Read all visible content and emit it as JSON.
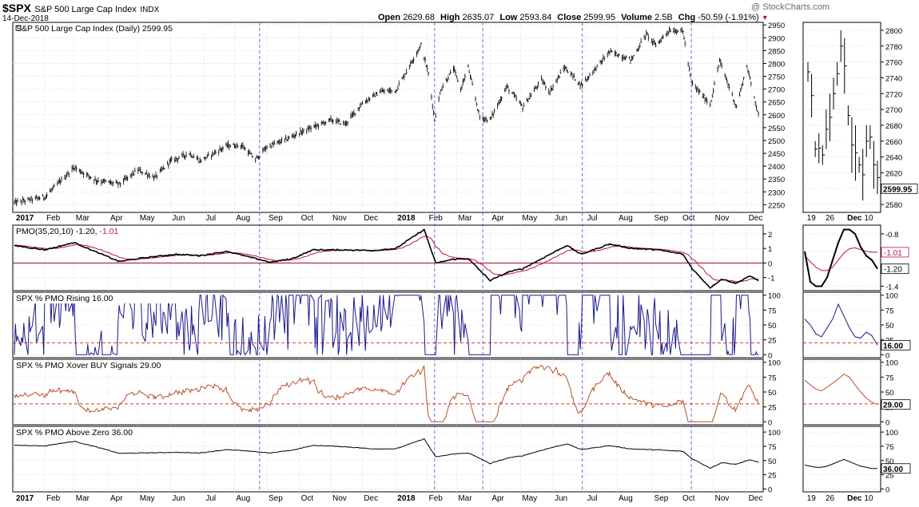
{
  "header": {
    "symbol": "$SPX",
    "name": "S&P 500 Large Cap Index",
    "exchange": "INDX",
    "date": "14-Dec-2018",
    "watermark": "@ StockCharts.com",
    "open_label": "Open",
    "open_value": "2629.68",
    "high_label": "High",
    "high_value": "2635.07",
    "low_label": "Low",
    "low_value": "2593.84",
    "close_label": "Close",
    "close_value": "2599.95",
    "volume_label": "Volume",
    "volume_value": "2.5B",
    "chg_label": "Chg",
    "chg_value": "-50.59 (-1.91%)"
  },
  "colors": {
    "price": "#000000",
    "pmo_line": "#000000",
    "pmo_signal": "#c0143c",
    "pmo_zero": "#a0003c",
    "rising": "#1a1a8c",
    "xover": "#b5532a",
    "above_zero": "#000000",
    "threshold": "#e0302a",
    "event_line": "#6a6ad8",
    "grid": "#c8c8c8",
    "value_box_red": "#c0143c"
  },
  "chart_data": [
    {
      "type": "line",
      "panel": "price",
      "title": "S&P 500 Large Cap Index (Daily) 2599.95",
      "series": [
        {
          "name": "S&P 500 Large Cap Index (Daily)",
          "last": 2599.95
        }
      ],
      "x_labels": [
        "2017",
        "Feb",
        "Mar",
        "Apr",
        "May",
        "Jun",
        "Jul",
        "Aug",
        "Sep",
        "Oct",
        "Nov",
        "Dec",
        "2018",
        "Feb",
        "Mar",
        "Apr",
        "May",
        "Jun",
        "Jul",
        "Aug",
        "Sep",
        "Oct",
        "Nov",
        "Dec"
      ],
      "x_ticks_dates": [
        "2017-01-03",
        "2017-02-01",
        "2017-03-01",
        "2017-04-03",
        "2017-05-01",
        "2017-06-01",
        "2017-07-03",
        "2017-08-01",
        "2017-09-01",
        "2017-10-02",
        "2017-11-01",
        "2017-12-01",
        "2018-01-02",
        "2018-02-01",
        "2018-03-01",
        "2018-04-02",
        "2018-05-01",
        "2018-06-01",
        "2018-07-02",
        "2018-08-01",
        "2018-09-04",
        "2018-10-01",
        "2018-11-01",
        "2018-12-03"
      ],
      "yticks": [
        2250,
        2300,
        2350,
        2400,
        2450,
        2500,
        2550,
        2600,
        2650,
        2700,
        2750,
        2800,
        2850,
        2900,
        2950
      ],
      "ylim": [
        2220,
        2960
      ],
      "keypoints": [
        [
          "2017-01-03",
          2258
        ],
        [
          "2017-02-01",
          2280
        ],
        [
          "2017-03-01",
          2395
        ],
        [
          "2017-03-22",
          2345
        ],
        [
          "2017-04-13",
          2330
        ],
        [
          "2017-05-01",
          2385
        ],
        [
          "2017-05-17",
          2355
        ],
        [
          "2017-06-01",
          2420
        ],
        [
          "2017-06-19",
          2450
        ],
        [
          "2017-06-29",
          2420
        ],
        [
          "2017-07-25",
          2480
        ],
        [
          "2017-08-08",
          2480
        ],
        [
          "2017-08-21",
          2425
        ],
        [
          "2017-09-01",
          2475
        ],
        [
          "2017-09-20",
          2505
        ],
        [
          "2017-10-02",
          2530
        ],
        [
          "2017-11-01",
          2580
        ],
        [
          "2017-11-15",
          2565
        ],
        [
          "2017-12-01",
          2645
        ],
        [
          "2017-12-18",
          2690
        ],
        [
          "2018-01-02",
          2695
        ],
        [
          "2018-01-26",
          2872
        ],
        [
          "2018-02-02",
          2760
        ],
        [
          "2018-02-08",
          2580
        ],
        [
          "2018-02-14",
          2700
        ],
        [
          "2018-02-26",
          2780
        ],
        [
          "2018-03-05",
          2700
        ],
        [
          "2018-03-12",
          2785
        ],
        [
          "2018-03-23",
          2590
        ],
        [
          "2018-04-02",
          2580
        ],
        [
          "2018-04-18",
          2710
        ],
        [
          "2018-05-03",
          2630
        ],
        [
          "2018-05-21",
          2735
        ],
        [
          "2018-05-29",
          2690
        ],
        [
          "2018-06-12",
          2785
        ],
        [
          "2018-06-28",
          2715
        ],
        [
          "2018-07-25",
          2845
        ],
        [
          "2018-08-15",
          2815
        ],
        [
          "2018-08-29",
          2915
        ],
        [
          "2018-09-07",
          2870
        ],
        [
          "2018-09-20",
          2930
        ],
        [
          "2018-10-03",
          2925
        ],
        [
          "2018-10-11",
          2725
        ],
        [
          "2018-10-29",
          2640
        ],
        [
          "2018-11-07",
          2810
        ],
        [
          "2018-11-23",
          2630
        ],
        [
          "2018-12-03",
          2790
        ],
        [
          "2018-12-14",
          2600
        ]
      ]
    },
    {
      "type": "bar",
      "panel": "price_zoom",
      "x_labels": [
        "19",
        "26",
        "Dec",
        "10"
      ],
      "yticks": [
        2580,
        2600,
        2620,
        2640,
        2660,
        2680,
        2700,
        2720,
        2740,
        2760,
        2780,
        2800
      ],
      "ylim": [
        2570,
        2810
      ],
      "last_label": "2599.95",
      "bars": [
        [
          2735,
          2760
        ],
        [
          2690,
          2745
        ],
        [
          2640,
          2660
        ],
        [
          2632,
          2670
        ],
        [
          2630,
          2655
        ],
        [
          2650,
          2700
        ],
        [
          2660,
          2720
        ],
        [
          2700,
          2740
        ],
        [
          2730,
          2760
        ],
        [
          2760,
          2800
        ],
        [
          2720,
          2790
        ],
        [
          2680,
          2705
        ],
        [
          2620,
          2690
        ],
        [
          2610,
          2680
        ],
        [
          2620,
          2640
        ],
        [
          2585,
          2650
        ],
        [
          2640,
          2680
        ],
        [
          2650,
          2680
        ],
        [
          2600,
          2660
        ],
        [
          2593,
          2635
        ]
      ]
    },
    {
      "type": "line",
      "panel": "pmo",
      "title": "PMO(35,20,10) -1.20,",
      "signal_label": "-1.01",
      "series": [
        {
          "name": "PMO(35,20,10)",
          "last": -1.2
        },
        {
          "name": "Signal",
          "last": -1.01
        }
      ],
      "yticks": [
        -1,
        0,
        1,
        2
      ],
      "ylim": [
        -1.9,
        2.6
      ],
      "zoom_yticks": [
        -1.4,
        -1.2,
        -1.0,
        -0.8
      ],
      "zoom_ylim": [
        -1.45,
        -0.7
      ],
      "keypoints": [
        [
          "2017-01-03",
          1.2
        ],
        [
          "2017-02-01",
          0.9
        ],
        [
          "2017-03-01",
          1.4
        ],
        [
          "2017-04-13",
          0.1
        ],
        [
          "2017-05-01",
          0.3
        ],
        [
          "2017-06-05",
          0.6
        ],
        [
          "2017-06-29",
          0.5
        ],
        [
          "2017-07-25",
          0.8
        ],
        [
          "2017-08-21",
          0.3
        ],
        [
          "2017-09-05",
          0.05
        ],
        [
          "2017-09-25",
          0.3
        ],
        [
          "2017-10-15",
          0.9
        ],
        [
          "2017-11-15",
          0.9
        ],
        [
          "2017-12-10",
          0.85
        ],
        [
          "2018-01-02",
          1.0
        ],
        [
          "2018-01-29",
          2.3
        ],
        [
          "2018-02-09",
          0.0
        ],
        [
          "2018-02-26",
          0.25
        ],
        [
          "2018-03-12",
          0.3
        ],
        [
          "2018-04-02",
          -1.2
        ],
        [
          "2018-04-20",
          -0.6
        ],
        [
          "2018-05-03",
          -0.4
        ],
        [
          "2018-06-14",
          1.2
        ],
        [
          "2018-06-28",
          0.6
        ],
        [
          "2018-07-25",
          1.3
        ],
        [
          "2018-08-15",
          1.0
        ],
        [
          "2018-09-10",
          0.9
        ],
        [
          "2018-10-03",
          0.6
        ],
        [
          "2018-10-12",
          -0.4
        ],
        [
          "2018-10-29",
          -1.7
        ],
        [
          "2018-11-09",
          -1.1
        ],
        [
          "2018-11-23",
          -1.4
        ],
        [
          "2018-12-05",
          -0.9
        ],
        [
          "2018-12-14",
          -1.2
        ]
      ],
      "zoom_pmo": [
        -1.0,
        -1.35,
        -1.4,
        -1.4,
        -1.3,
        -1.1,
        -0.9,
        -0.75,
        -0.75,
        -0.8,
        -0.95,
        -1.05,
        -1.1,
        -1.2
      ],
      "zoom_signal": [
        -1.05,
        -1.12,
        -1.18,
        -1.22,
        -1.22,
        -1.18,
        -1.1,
        -1.02,
        -0.97,
        -0.96,
        -0.98,
        -1.0,
        -1.01,
        -1.01
      ]
    },
    {
      "type": "line",
      "panel": "pmo_rising",
      "title": "SPX % PMO Rising 16.00",
      "series": [
        {
          "name": "SPX % PMO Rising",
          "last": 16.0
        }
      ],
      "yticks": [
        0,
        25,
        50,
        75,
        100
      ],
      "ylim": [
        -5,
        105
      ],
      "threshold": 20,
      "last_label": "16.00",
      "zoom": [
        60,
        50,
        35,
        30,
        45,
        60,
        85,
        65,
        45,
        30,
        28,
        38,
        32,
        16
      ]
    },
    {
      "type": "line",
      "panel": "pmo_xover",
      "title": "SPX % PMO Xover BUY Signals 29.00",
      "series": [
        {
          "name": "SPX % PMO Xover BUY Signals",
          "last": 29.0
        }
      ],
      "yticks": [
        0,
        25,
        50,
        75,
        100
      ],
      "ylim": [
        -5,
        105
      ],
      "threshold": 30,
      "last_label": "29.00",
      "zoom": [
        70,
        62,
        55,
        52,
        58,
        65,
        72,
        80,
        75,
        62,
        50,
        40,
        33,
        29
      ]
    },
    {
      "type": "line",
      "panel": "pmo_above_zero",
      "title": "SPX % PMO Above Zero 36.00",
      "series": [
        {
          "name": "SPX % PMO Above Zero",
          "last": 36.0
        }
      ],
      "yticks": [
        0,
        25,
        50,
        75,
        100
      ],
      "ylim": [
        -5,
        110
      ],
      "last_label": "36.00",
      "zoom": [
        42,
        40,
        38,
        38,
        40,
        44,
        48,
        52,
        48,
        44,
        40,
        38,
        36,
        36
      ]
    }
  ],
  "event_dates": [
    "2017-08-25",
    "2018-02-08",
    "2018-03-26",
    "2018-06-29",
    "2018-10-11"
  ],
  "zoom_x_labels": [
    "19",
    "26",
    "Dec",
    "10"
  ]
}
